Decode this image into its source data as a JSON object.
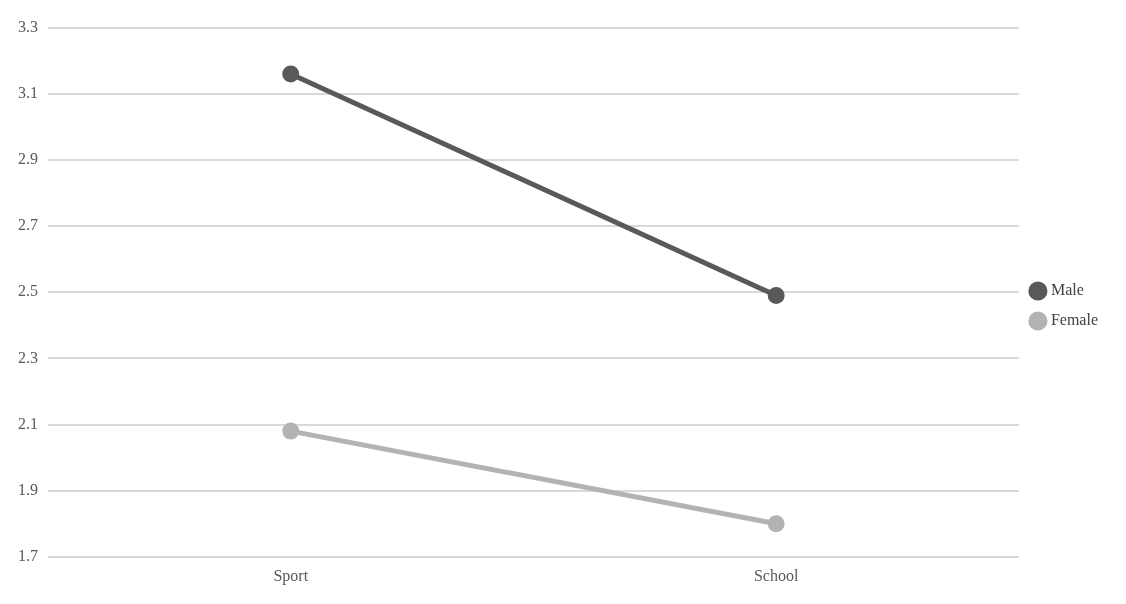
{
  "chart_data": {
    "type": "line",
    "categories": [
      "Sport",
      "School"
    ],
    "series": [
      {
        "name": "Male",
        "color": "#595959",
        "values": [
          3.16,
          2.49
        ]
      },
      {
        "name": "Female",
        "color": "#b3b3b3",
        "values": [
          2.08,
          1.8
        ]
      }
    ],
    "ylim": [
      1.7,
      3.3
    ],
    "yticks": [
      1.7,
      1.9,
      2.1,
      2.3,
      2.5,
      2.7,
      2.9,
      3.1,
      3.3
    ],
    "grid": "y",
    "legend": "right",
    "marker": "circle"
  }
}
